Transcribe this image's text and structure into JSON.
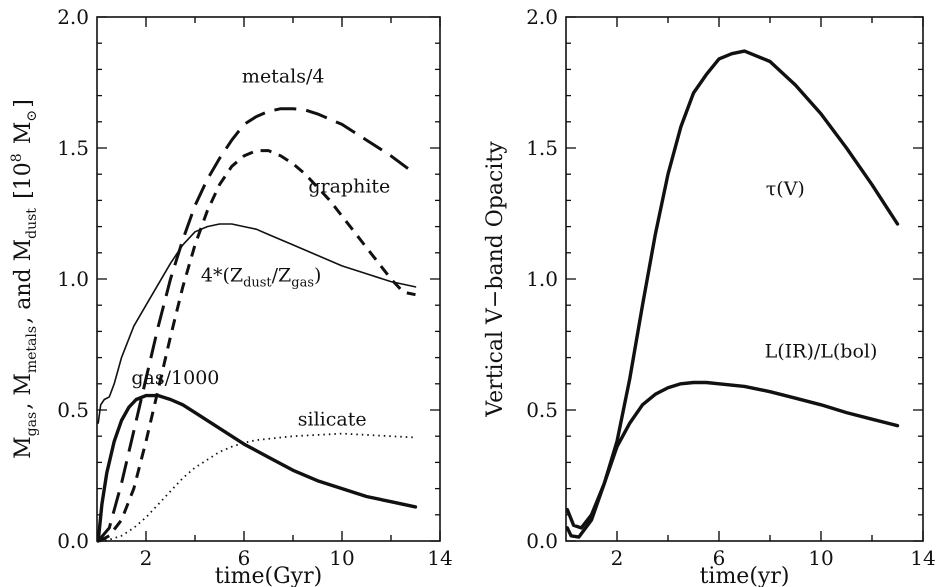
{
  "chart_data": [
    {
      "type": "line",
      "panel": "left",
      "xlabel": "time(Gyr)",
      "ylabel": {
        "parts": [
          {
            "t": "M",
            "sub": "gas"
          },
          {
            "t": ", M",
            "sub": "metals"
          },
          {
            "t": ", and M",
            "sub": "dust"
          },
          {
            "t": " [10",
            "sup": "8"
          },
          {
            "t": " M",
            "sub": "⊙"
          },
          {
            "t": "]"
          }
        ]
      },
      "xlim": [
        0,
        14
      ],
      "ylim": [
        0,
        2.0
      ],
      "xticks": [
        2,
        6,
        10,
        14
      ],
      "xticks_minor": [
        4,
        8,
        12
      ],
      "yticks": [
        0.0,
        0.5,
        1.0,
        1.5,
        2.0
      ],
      "ytick_labels": [
        "0.0",
        "0.5",
        "1.0",
        "1.5",
        "2.0"
      ],
      "grid": false,
      "series": [
        {
          "key": "metals",
          "style": "long-dash",
          "x": [
            0.05,
            0.5,
            1.0,
            1.5,
            2.0,
            2.5,
            3.0,
            3.5,
            4.0,
            4.5,
            5.0,
            5.5,
            6.0,
            6.5,
            7.0,
            7.5,
            8.0,
            8.5,
            9.0,
            10.0,
            11.0,
            12.0,
            13.0
          ],
          "y": [
            0.0,
            0.05,
            0.22,
            0.42,
            0.62,
            0.82,
            1.0,
            1.15,
            1.28,
            1.38,
            1.46,
            1.53,
            1.59,
            1.62,
            1.64,
            1.65,
            1.65,
            1.645,
            1.63,
            1.59,
            1.53,
            1.47,
            1.4
          ]
        },
        {
          "key": "graphite",
          "style": "short-dash",
          "x": [
            0.1,
            0.5,
            1.0,
            1.5,
            2.0,
            2.5,
            3.0,
            3.5,
            4.0,
            4.5,
            5.0,
            5.5,
            6.0,
            6.5,
            7.0,
            7.5,
            8.0,
            8.5,
            9.0,
            9.5,
            10.0,
            10.5,
            11.0,
            11.5,
            12.0,
            12.5,
            13.0
          ],
          "y": [
            0.0,
            0.02,
            0.08,
            0.2,
            0.38,
            0.58,
            0.78,
            0.97,
            1.13,
            1.26,
            1.36,
            1.43,
            1.47,
            1.49,
            1.49,
            1.47,
            1.44,
            1.4,
            1.35,
            1.3,
            1.24,
            1.18,
            1.12,
            1.06,
            1.0,
            0.95,
            0.94
          ]
        },
        {
          "key": "zratio",
          "style": "thin",
          "x": [
            0.05,
            0.15,
            0.3,
            0.5,
            0.7,
            1.0,
            1.5,
            2.0,
            2.5,
            3.0,
            3.5,
            4.0,
            4.5,
            5.0,
            5.5,
            6.0,
            6.5,
            7.0,
            8.0,
            9.0,
            10.0,
            11.0,
            12.0,
            13.0
          ],
          "y": [
            0.45,
            0.52,
            0.54,
            0.55,
            0.6,
            0.7,
            0.82,
            0.9,
            0.98,
            1.06,
            1.13,
            1.18,
            1.2,
            1.21,
            1.21,
            1.2,
            1.19,
            1.17,
            1.13,
            1.09,
            1.05,
            1.02,
            0.99,
            0.97
          ]
        },
        {
          "key": "gas",
          "style": "thick",
          "x": [
            0.05,
            0.2,
            0.4,
            0.7,
            1.0,
            1.3,
            1.6,
            2.0,
            2.5,
            3.0,
            3.5,
            4.0,
            5.0,
            6.0,
            7.0,
            8.0,
            9.0,
            10.0,
            11.0,
            12.0,
            13.0
          ],
          "y": [
            0.0,
            0.14,
            0.26,
            0.38,
            0.46,
            0.51,
            0.54,
            0.555,
            0.555,
            0.54,
            0.52,
            0.49,
            0.43,
            0.37,
            0.32,
            0.27,
            0.23,
            0.2,
            0.17,
            0.15,
            0.13
          ]
        },
        {
          "key": "silicate",
          "style": "dotted",
          "x": [
            0.1,
            0.5,
            1.0,
            1.5,
            2.0,
            2.5,
            3.0,
            3.5,
            4.0,
            4.5,
            5.0,
            5.5,
            6.0,
            6.5,
            7.0,
            8.0,
            9.0,
            10.0,
            11.0,
            12.0,
            13.0
          ],
          "y": [
            0.0,
            0.005,
            0.02,
            0.05,
            0.09,
            0.14,
            0.19,
            0.24,
            0.28,
            0.31,
            0.34,
            0.36,
            0.375,
            0.385,
            0.39,
            0.4,
            0.405,
            0.41,
            0.405,
            0.4,
            0.395
          ]
        }
      ],
      "annotations": [
        {
          "key": "metals",
          "text": "metals/4",
          "x": 7.6,
          "y": 1.75
        },
        {
          "key": "graphite",
          "text": "graphite",
          "x": 10.3,
          "y": 1.33
        },
        {
          "key": "zratio",
          "text": "4*(Z",
          "sub1": "dust",
          "mid": "/Z",
          "sub2": "gas",
          "end": ")",
          "x": 6.7,
          "y": 0.99
        },
        {
          "key": "gas",
          "text": "gas/1000",
          "x": 3.2,
          "y": 0.6
        },
        {
          "key": "silicate",
          "text": "silicate",
          "x": 9.6,
          "y": 0.44
        }
      ]
    },
    {
      "type": "line",
      "panel": "right",
      "xlabel": "time(yr)",
      "ylabel": "Vertical V−band Opacity",
      "xlim": [
        0,
        14
      ],
      "ylim": [
        0,
        2.0
      ],
      "xticks": [
        2,
        6,
        10,
        14
      ],
      "xticks_minor": [
        4,
        8,
        12
      ],
      "yticks": [
        0.0,
        0.5,
        1.0,
        1.5,
        2.0
      ],
      "ytick_labels": [
        "0.0",
        "0.5",
        "1.0",
        "1.5",
        "2.0"
      ],
      "grid": false,
      "series": [
        {
          "key": "tau",
          "style": "thick",
          "x": [
            0.05,
            0.3,
            0.6,
            1.0,
            1.5,
            2.0,
            2.5,
            3.0,
            3.5,
            4.0,
            4.5,
            5.0,
            5.5,
            6.0,
            6.5,
            7.0,
            7.5,
            8.0,
            9.0,
            10.0,
            11.0,
            12.0,
            13.0
          ],
          "y": [
            0.12,
            0.06,
            0.05,
            0.1,
            0.22,
            0.38,
            0.62,
            0.9,
            1.17,
            1.4,
            1.58,
            1.71,
            1.78,
            1.84,
            1.86,
            1.87,
            1.85,
            1.83,
            1.74,
            1.63,
            1.5,
            1.36,
            1.21
          ]
        },
        {
          "key": "lir",
          "style": "thick",
          "x": [
            0.05,
            0.2,
            0.5,
            1.0,
            1.5,
            2.0,
            2.5,
            3.0,
            3.5,
            4.0,
            4.5,
            5.0,
            5.5,
            6.0,
            7.0,
            8.0,
            9.0,
            10.0,
            11.0,
            12.0,
            13.0
          ],
          "y": [
            0.05,
            0.02,
            0.015,
            0.08,
            0.22,
            0.36,
            0.45,
            0.52,
            0.56,
            0.585,
            0.6,
            0.605,
            0.605,
            0.6,
            0.59,
            0.57,
            0.545,
            0.52,
            0.49,
            0.465,
            0.44
          ]
        }
      ],
      "annotations": [
        {
          "key": "tau",
          "text": "τ(V)",
          "x": 8.6,
          "y": 1.32
        },
        {
          "key": "lir",
          "text": "L(IR)/L(bol)",
          "x": 10.0,
          "y": 0.7
        }
      ]
    }
  ]
}
